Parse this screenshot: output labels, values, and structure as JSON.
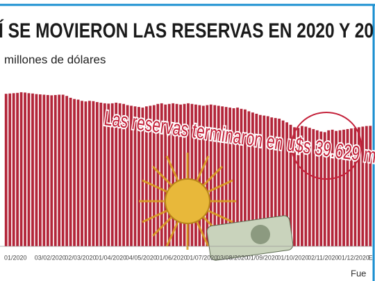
{
  "chart_data": {
    "type": "bar",
    "title": "Í SE MOVIERON LAS RESERVAS EN 2020 Y 20",
    "subtitle": "millones de dólares",
    "annotation": "Las reservas terminaron en u$s 39.629 mi",
    "source": "Fue",
    "color": "#b3263a",
    "ylim": [
      20000,
      46000
    ],
    "categories": [
      "01/2020",
      null,
      null,
      null,
      null,
      null,
      null,
      null,
      "03/02/2020",
      null,
      null,
      null,
      null,
      null,
      null,
      null,
      "02/03/2020",
      null,
      null,
      null,
      null,
      null,
      null,
      null,
      "01/04/2020",
      null,
      null,
      null,
      null,
      null,
      null,
      null,
      "04/05/2020",
      null,
      null,
      null,
      null,
      null,
      null,
      null,
      "01/06/2020",
      null,
      null,
      null,
      null,
      null,
      null,
      null,
      "01/07/2020",
      null,
      null,
      null,
      null,
      null,
      null,
      null,
      "03/08/2020",
      null,
      null,
      null,
      null,
      null,
      null,
      null,
      "01/09/2020",
      null,
      null,
      null,
      null,
      null,
      null,
      null,
      "01/10/2020",
      null,
      null,
      null,
      null,
      null,
      null,
      null,
      "02/11/2020",
      null,
      null,
      null,
      null,
      null,
      null,
      null,
      "01/12/2020",
      null,
      null,
      null,
      null,
      null,
      null,
      null,
      "E"
    ],
    "values": [
      44848,
      44900,
      44950,
      45000,
      45100,
      45050,
      44950,
      44900,
      44800,
      44750,
      44700,
      44650,
      44600,
      44650,
      44700,
      44700,
      44500,
      44200,
      44000,
      43900,
      43700,
      43600,
      43700,
      43650,
      43500,
      43400,
      43300,
      43250,
      43300,
      43400,
      43300,
      43200,
      43000,
      42900,
      42800,
      42700,
      42600,
      42800,
      42900,
      43000,
      43200,
      43300,
      43100,
      43200,
      43300,
      43200,
      43100,
      43200,
      43300,
      43200,
      43100,
      43000,
      42900,
      43000,
      43100,
      43000,
      42900,
      42800,
      42700,
      42600,
      42500,
      42600,
      42400,
      42300,
      42000,
      41800,
      41600,
      41400,
      41300,
      41200,
      41000,
      40900,
      40800,
      40500,
      40200,
      39800,
      39400,
      39300,
      39600,
      39500,
      39300,
      39100,
      38900,
      38700,
      38600,
      38900,
      39000,
      38800,
      38900,
      39000,
      39100,
      39200,
      39300,
      39400,
      39500,
      39600,
      39629
    ]
  }
}
